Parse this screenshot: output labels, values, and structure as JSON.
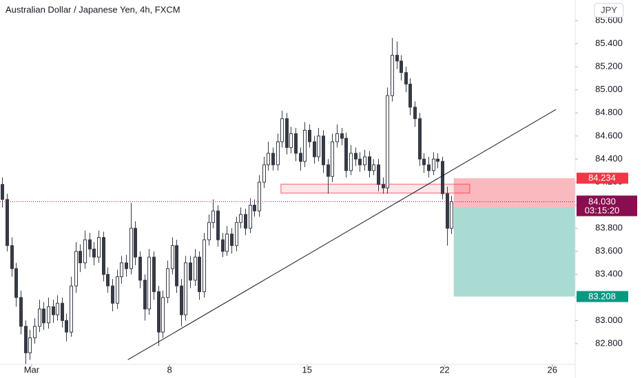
{
  "chart_data": {
    "type": "candlestick",
    "title": "Australian Dollar / Japanese Yen, 4h, FXCM",
    "currency": "JPY",
    "candles": {
      "open": [
        84.18,
        84.05,
        83.65,
        83.45,
        83.2,
        82.95,
        82.72,
        82.85,
        82.95,
        83.1,
        82.98,
        83.12,
        83.05,
        83.15,
        83.0,
        82.9,
        83.3,
        83.6,
        83.5,
        83.7,
        83.62,
        83.55,
        83.72,
        83.4,
        83.3,
        83.15,
        83.38,
        83.5,
        83.45,
        83.8,
        83.55,
        83.35,
        83.1,
        83.55,
        83.25,
        82.9,
        83.2,
        83.45,
        83.65,
        83.3,
        83.05,
        83.5,
        83.35,
        83.55,
        83.25,
        83.7,
        83.85,
        83.95,
        83.7,
        83.6,
        83.75,
        83.65,
        83.85,
        83.92,
        83.8,
        84.0,
        83.95,
        84.2,
        84.35,
        84.45,
        84.35,
        84.55,
        84.75,
        84.5,
        84.62,
        84.45,
        84.38,
        84.65,
        84.55,
        84.42,
        84.6,
        84.35,
        84.25,
        84.55,
        84.62,
        84.58,
        84.3,
        84.45,
        84.4,
        84.35,
        84.42,
        84.3,
        84.35,
        84.18,
        84.15,
        84.95,
        85.3,
        85.25,
        85.15,
        85.05,
        84.85,
        84.75,
        84.4,
        84.35,
        84.3,
        84.4,
        84.38,
        84.1,
        83.8
      ],
      "high": [
        84.24,
        84.1,
        83.72,
        83.5,
        83.26,
        83.0,
        82.92,
        83.02,
        83.18,
        83.16,
        83.2,
        83.18,
        83.22,
        83.2,
        83.06,
        83.38,
        83.68,
        83.66,
        83.78,
        83.76,
        83.68,
        83.78,
        83.77,
        83.46,
        83.36,
        83.44,
        83.56,
        83.57,
        84.02,
        83.86,
        83.6,
        83.4,
        83.62,
        83.6,
        83.3,
        83.26,
        83.52,
        83.72,
        83.7,
        83.36,
        83.56,
        83.56,
        83.62,
        83.6,
        83.76,
        83.92,
        84.05,
        84.0,
        83.76,
        83.82,
        83.8,
        83.9,
        83.98,
        83.97,
        84.06,
        84.05,
        84.26,
        84.42,
        84.55,
        84.5,
        84.62,
        84.82,
        84.8,
        84.68,
        84.67,
        84.5,
        84.72,
        84.7,
        84.6,
        84.67,
        84.65,
        84.4,
        84.62,
        84.7,
        84.67,
        84.63,
        84.52,
        84.5,
        84.46,
        84.48,
        84.47,
        84.4,
        84.4,
        84.24,
        85.02,
        85.45,
        85.42,
        85.3,
        85.2,
        85.1,
        84.9,
        84.8,
        84.45,
        84.42,
        84.46,
        84.45,
        84.42,
        84.16,
        84.08
      ],
      "low": [
        83.98,
        83.6,
        83.38,
        83.12,
        82.88,
        82.62,
        82.66,
        82.8,
        82.9,
        82.92,
        82.93,
        82.98,
        83.0,
        82.94,
        82.82,
        82.86,
        83.24,
        83.42,
        83.45,
        83.55,
        83.48,
        83.5,
        83.34,
        83.24,
        83.08,
        83.1,
        83.32,
        83.38,
        83.4,
        83.48,
        83.28,
        83.0,
        83.05,
        83.18,
        82.78,
        82.85,
        83.15,
        83.4,
        83.24,
        82.95,
        83.0,
        83.28,
        83.3,
        83.18,
        83.2,
        83.65,
        83.8,
        83.64,
        83.55,
        83.56,
        83.58,
        83.6,
        83.8,
        83.74,
        83.76,
        83.9,
        83.9,
        84.15,
        84.3,
        84.3,
        84.3,
        84.5,
        84.44,
        84.45,
        84.38,
        84.3,
        84.33,
        84.5,
        84.36,
        84.38,
        84.28,
        84.1,
        84.2,
        84.5,
        84.52,
        84.24,
        84.26,
        84.34,
        84.29,
        84.3,
        84.24,
        84.26,
        84.12,
        84.1,
        84.1,
        84.9,
        85.18,
        85.08,
        84.98,
        84.78,
        84.68,
        84.34,
        84.28,
        84.24,
        84.26,
        84.32,
        84.05,
        83.65,
        83.75
      ],
      "close": [
        84.05,
        83.65,
        83.45,
        83.2,
        82.95,
        82.72,
        82.85,
        82.95,
        83.1,
        82.98,
        83.12,
        83.05,
        83.15,
        83.0,
        82.9,
        83.3,
        83.6,
        83.5,
        83.7,
        83.62,
        83.55,
        83.72,
        83.4,
        83.3,
        83.15,
        83.38,
        83.5,
        83.45,
        83.8,
        83.55,
        83.35,
        83.1,
        83.55,
        83.25,
        82.9,
        83.2,
        83.45,
        83.65,
        83.3,
        83.05,
        83.5,
        83.35,
        83.55,
        83.25,
        83.7,
        83.85,
        83.95,
        83.7,
        83.6,
        83.75,
        83.65,
        83.85,
        83.92,
        83.8,
        84.0,
        83.95,
        84.2,
        84.35,
        84.45,
        84.35,
        84.55,
        84.75,
        84.5,
        84.62,
        84.45,
        84.38,
        84.65,
        84.55,
        84.42,
        84.6,
        84.35,
        84.25,
        84.55,
        84.62,
        84.58,
        84.3,
        84.45,
        84.4,
        84.35,
        84.42,
        84.3,
        84.35,
        84.18,
        84.15,
        84.95,
        85.3,
        85.25,
        85.15,
        85.05,
        84.85,
        84.75,
        84.4,
        84.35,
        84.3,
        84.4,
        84.38,
        84.1,
        83.8,
        84.03
      ]
    },
    "up_color": "#ffffff",
    "down_color": "#363a45",
    "xlim": [
      -0.5,
      125
    ],
    "xticks": [
      {
        "value": 6.4,
        "label": "Mar"
      },
      {
        "value": 36.5,
        "label": "8"
      },
      {
        "value": 66.5,
        "label": "15"
      },
      {
        "value": 96.5,
        "label": "22"
      },
      {
        "value": 120,
        "label": "26"
      }
    ],
    "ylim": [
      82.621,
      85.779
    ],
    "yticks": [
      {
        "value": 82.8,
        "label": "82.800"
      },
      {
        "value": 83.0,
        "label": "83.000"
      },
      {
        "value": 83.2,
        "label": "83.200"
      },
      {
        "value": 83.4,
        "label": "83.400"
      },
      {
        "value": 83.6,
        "label": "83.600"
      },
      {
        "value": 83.8,
        "label": "83.800"
      },
      {
        "value": 84.0,
        "label": "84.000"
      },
      {
        "value": 84.2,
        "label": "84.200"
      },
      {
        "value": 84.4,
        "label": "84.400"
      },
      {
        "value": 84.6,
        "label": "84.600"
      },
      {
        "value": 84.8,
        "label": "84.800"
      },
      {
        "value": 85.0,
        "label": "85.000"
      },
      {
        "value": 85.2,
        "label": "85.200"
      },
      {
        "value": 85.4,
        "label": "85.400"
      },
      {
        "value": 85.6,
        "label": "85.600"
      }
    ],
    "grid": false,
    "trendline": {
      "x": [
        27.4,
        120.8
      ],
      "y": [
        82.66,
        84.83
      ],
      "color": "#131722"
    },
    "zone": {
      "x": [
        60.8,
        102
      ],
      "y": [
        84.105,
        84.182
      ],
      "color": "#f23645"
    },
    "position": {
      "x": [
        98.5,
        125
      ],
      "stop": 84.234,
      "entry": 83.978,
      "target": 83.208,
      "stop_color": "#f23645",
      "entry_color": "#787b86",
      "target_color": "#089981"
    },
    "current_price": {
      "value": 84.03,
      "label": "84.030"
    },
    "countdown": "03:15:20",
    "current_color": "#880e4f"
  }
}
